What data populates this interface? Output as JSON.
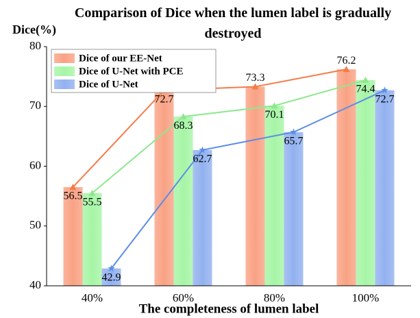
{
  "chart_data": {
    "type": "bar",
    "title": "Comparison of Dice when the lumen label is gradually destroyed",
    "y_label": "Dice(%)",
    "x_label": "The completeness of lumen label",
    "categories": [
      "40%",
      "60%",
      "80%",
      "100%"
    ],
    "series": [
      {
        "name": "Dice of our EE-Net",
        "color": "#f9a284",
        "line_color": "#f47c4a",
        "marker": "triangle",
        "values": [
          56.5,
          72.7,
          73.3,
          76.2
        ]
      },
      {
        "name": "Dice of U-Net with PCE",
        "color": "#a6f5a6",
        "line_color": "#8ee88e",
        "marker": "triangle",
        "values": [
          55.5,
          68.3,
          70.1,
          74.4
        ]
      },
      {
        "name": "Dice of U-Net",
        "color": "#92b1f0",
        "line_color": "#5b8ee6",
        "marker": "star",
        "values": [
          42.9,
          62.7,
          65.7,
          72.7
        ]
      }
    ],
    "ylim": [
      40,
      80
    ],
    "yticks": [
      40,
      50,
      60,
      70,
      80
    ],
    "grid": false,
    "legend": "upper left"
  }
}
